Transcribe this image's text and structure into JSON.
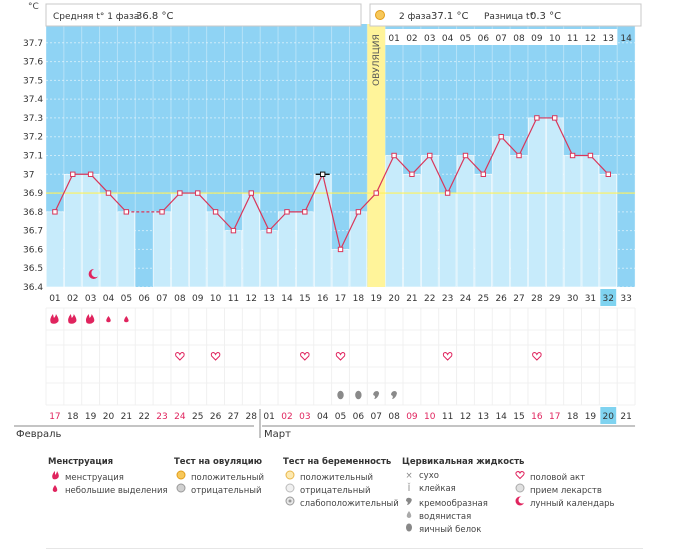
{
  "unit_label": "°C",
  "phase1_label": "Средняя t° 1 фаза",
  "phase1_value": "36.8 °C",
  "phase2_label": "2 фаза",
  "phase2_value": "37.1 °C",
  "diff_label": "Разница t°",
  "diff_value": "0.3 °C",
  "ovulation_label": "ОВУЛЯЦИЯ",
  "month_feb": "Февраль",
  "month_mar": "Март",
  "chart_data": {
    "type": "line",
    "ylim": [
      36.4,
      37.8
    ],
    "yticks": [
      "36.4",
      "36.5",
      "36.6",
      "36.7",
      "36.8",
      "36.9",
      "37",
      "37.1",
      "37.2",
      "37.3",
      "37.4",
      "37.5",
      "37.6",
      "37.7"
    ],
    "cycle_days": [
      "01",
      "02",
      "03",
      "04",
      "05",
      "06",
      "07",
      "08",
      "09",
      "10",
      "11",
      "12",
      "13",
      "14",
      "15",
      "16",
      "17",
      "18",
      "19",
      "20",
      "21",
      "22",
      "23",
      "24",
      "25",
      "26",
      "27",
      "28",
      "29",
      "30",
      "31",
      "32",
      "33"
    ],
    "dates": [
      "17",
      "18",
      "19",
      "20",
      "21",
      "22",
      "23",
      "24",
      "25",
      "26",
      "27",
      "28",
      "01",
      "02",
      "03",
      "04",
      "05",
      "06",
      "07",
      "08",
      "09",
      "10",
      "11",
      "12",
      "13",
      "14",
      "15",
      "16",
      "17",
      "18",
      "19",
      "20",
      "21"
    ],
    "weekend_dates": [
      0,
      6,
      7,
      13,
      14,
      20,
      21,
      27,
      28
    ],
    "temperatures": [
      36.8,
      37.0,
      37.0,
      36.9,
      36.8,
      null,
      36.8,
      36.9,
      36.9,
      36.8,
      36.7,
      36.9,
      36.7,
      36.8,
      36.8,
      37.0,
      36.6,
      36.8,
      36.9,
      37.1,
      37.0,
      37.1,
      36.9,
      37.1,
      37.0,
      37.2,
      37.1,
      37.3,
      37.3,
      37.1,
      37.1,
      37.0,
      null
    ],
    "coverline": 36.9,
    "ovulation_day": "19",
    "today_day": "32",
    "phase2_days": [
      "01",
      "02",
      "03",
      "04",
      "05",
      "06",
      "07",
      "08",
      "09",
      "10",
      "11",
      "12",
      "13",
      "14"
    ],
    "lunar_day": "03",
    "highlighted_point_day": "16",
    "menstruation_days": [
      "01",
      "02",
      "03"
    ],
    "light_spotting_days": [
      "04",
      "05"
    ],
    "intercourse_days": [
      "08",
      "10",
      "15",
      "17",
      "23",
      "28"
    ],
    "cervical_fluid": [
      {
        "day": "17",
        "type": "egg-white"
      },
      {
        "day": "18",
        "type": "egg-white"
      },
      {
        "day": "19",
        "type": "creamy"
      },
      {
        "day": "20",
        "type": "creamy"
      }
    ]
  },
  "legend": {
    "menstruation": {
      "title": "Менструация",
      "items": [
        {
          "icon": "menstruation-icon",
          "label": "менструация"
        },
        {
          "icon": "spotting-icon",
          "label": "небольшие выделения"
        }
      ]
    },
    "ovulation_test": {
      "title": "Тест на овуляцию",
      "items": [
        {
          "icon": "test-positive-icon",
          "label": "положительный"
        },
        {
          "icon": "test-negative-icon",
          "label": "отрицательный"
        }
      ]
    },
    "pregnancy_test": {
      "title": "Тест на беременность",
      "items": [
        {
          "icon": "pregnancy-positive-icon",
          "label": "положительный"
        },
        {
          "icon": "pregnancy-negative-icon",
          "label": "отрицательный"
        },
        {
          "icon": "pregnancy-weak-icon",
          "label": "слабоположительный"
        }
      ]
    },
    "cervical": {
      "title": "Цервикальная жидкость",
      "items": [
        {
          "icon": "dry-icon",
          "label": "сухо"
        },
        {
          "icon": "sticky-icon",
          "label": "клейкая"
        },
        {
          "icon": "creamy-icon",
          "label": "кремообразная"
        },
        {
          "icon": "watery-icon",
          "label": "водянистая"
        },
        {
          "icon": "egg-white-icon",
          "label": "яичный белок"
        }
      ]
    },
    "other": {
      "items": [
        {
          "icon": "heart-icon",
          "label": "половой акт"
        },
        {
          "icon": "pill-icon",
          "label": "прием лекарств"
        },
        {
          "icon": "moon-icon",
          "label": "лунный календарь"
        }
      ]
    }
  },
  "colors": {
    "phase1_bg": "#c9ecfb",
    "phase2_bg": "#d6f2fd",
    "blue_bg": "#8fd3f4",
    "bar": "#c7ebfb",
    "ovulation": "#fff49a",
    "line": "#d9365a",
    "accent_pink": "#e0245e",
    "today": "#7fd3f0"
  }
}
